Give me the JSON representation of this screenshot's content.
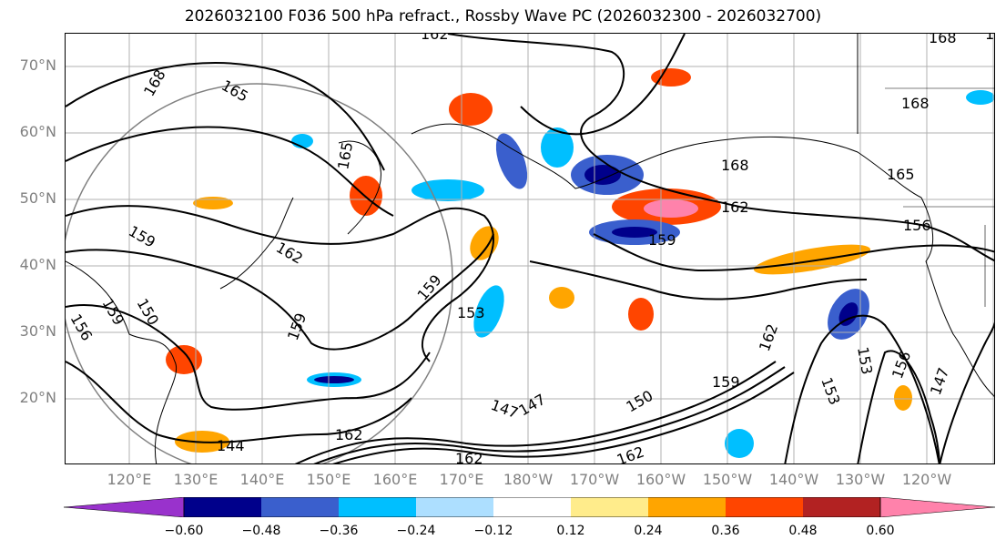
{
  "title": "2026032100 F036 500 hPa refract., Rossby Wave PC (2026032300 - 2026032700)",
  "lat_labels": [
    "70°N",
    "60°N",
    "50°N",
    "40°N",
    "30°N",
    "20°N"
  ],
  "lon_labels": [
    "120°E",
    "130°E",
    "140°E",
    "150°E",
    "160°E",
    "170°E",
    "180°W",
    "170°W",
    "160°W",
    "150°W",
    "140°W",
    "130°W",
    "120°W"
  ],
  "contour_labels": [
    "162",
    "165",
    "168",
    "168",
    "168",
    "165",
    "159",
    "162",
    "165",
    "162",
    "156",
    "159",
    "159",
    "156",
    "159",
    "150",
    "159",
    "153",
    "159",
    "162",
    "147",
    "147",
    "150",
    "159",
    "162",
    "153",
    "156",
    "153",
    "147",
    "144",
    "162",
    "162",
    "168"
  ],
  "colorbar": {
    "colors": [
      "#9932CC",
      "#00008B",
      "#3A5FCD",
      "#00BFFF",
      "#ADDFFF",
      "#FFFFFF",
      "#FFEC8B",
      "#FFA500",
      "#FF4500",
      "#B22222",
      "#FF82AB"
    ],
    "tick_labels": [
      "−0.60",
      "−0.48",
      "−0.36",
      "−0.24",
      "−0.12",
      "0.12",
      "0.24",
      "0.36",
      "0.48",
      "0.60"
    ]
  }
}
